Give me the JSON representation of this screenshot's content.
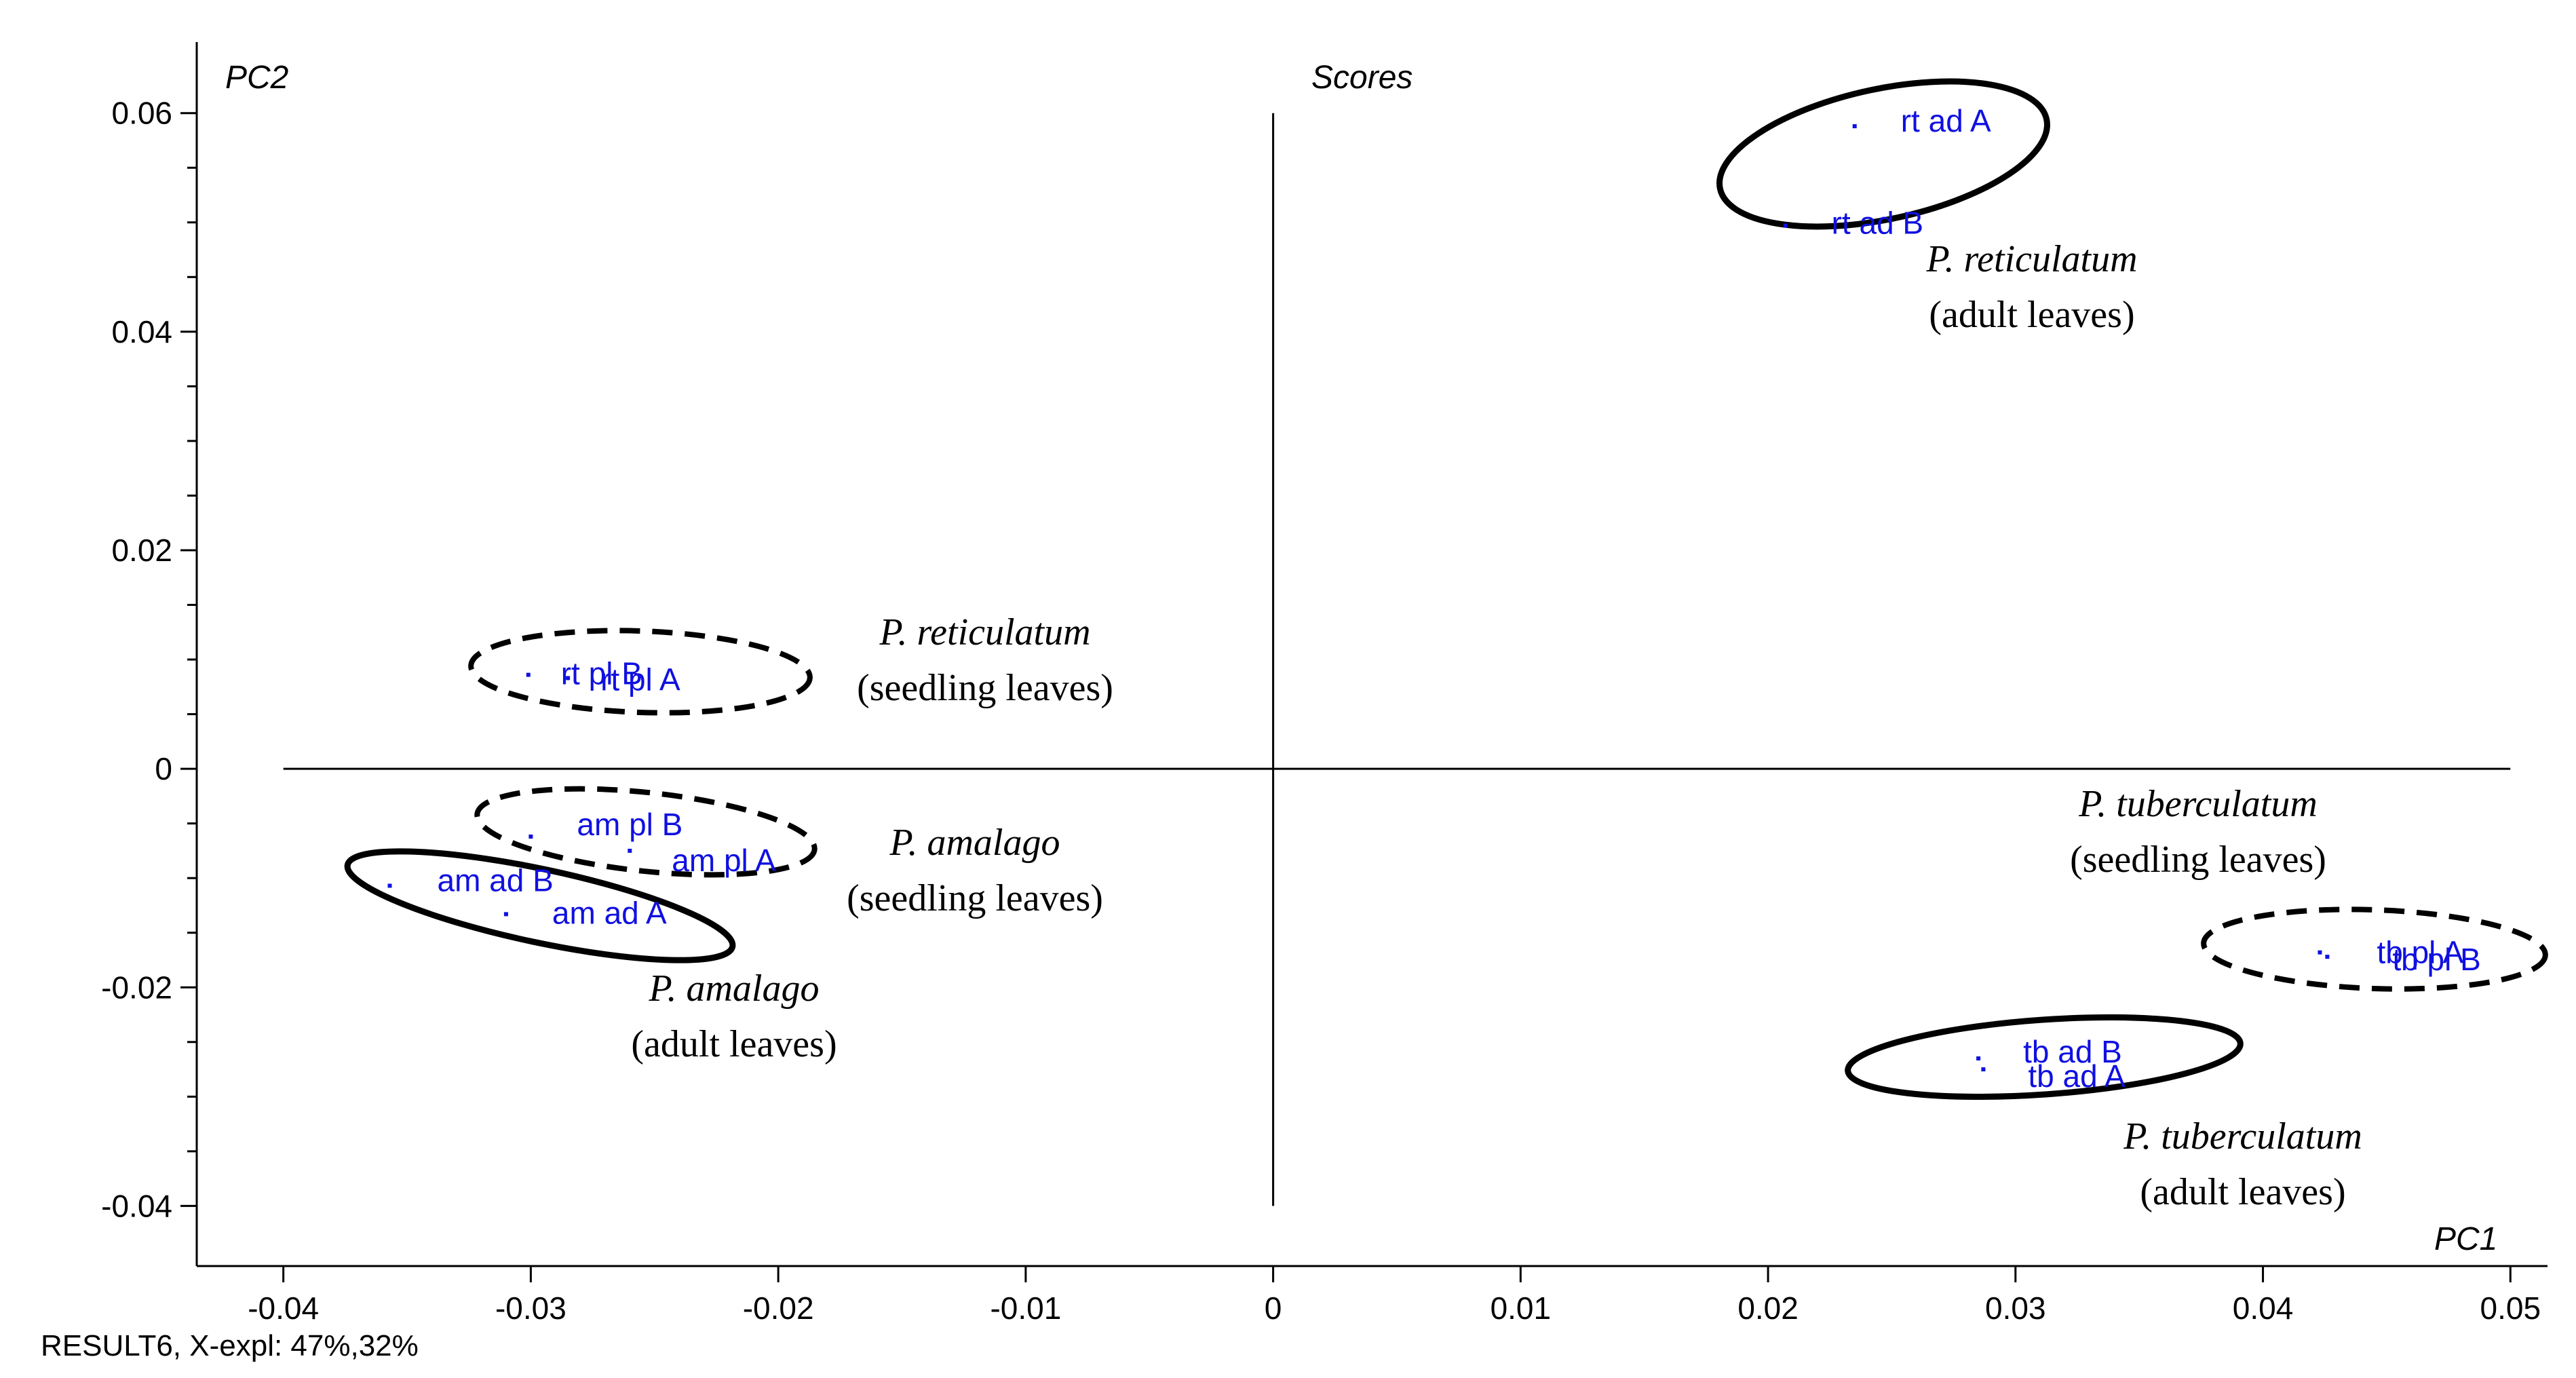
{
  "chart_data": {
    "type": "scatter",
    "title": "Scores",
    "xlabel": "PC1",
    "ylabel": "PC2",
    "xlim": [
      -0.0435,
      0.0515
    ],
    "ylim": [
      -0.0455,
      0.0665
    ],
    "x_ticks": [
      -0.04,
      -0.03,
      -0.02,
      -0.01,
      0,
      0.01,
      0.02,
      0.03,
      0.04,
      0.05
    ],
    "x_tick_labels": [
      "-0.04",
      "-0.03",
      "-0.02",
      "-0.01",
      "0",
      "0.01",
      "0.02",
      "0.03",
      "0.04",
      "0.05"
    ],
    "y_ticks": [
      -0.04,
      -0.02,
      0,
      0.02,
      0.04,
      0.06
    ],
    "y_tick_labels": [
      "-0.04",
      "-0.02",
      "0",
      "0.02",
      "0.04",
      "0.06"
    ],
    "y_minor_step": 0.005,
    "zero_lines": {
      "x_range": [
        -0.04,
        0.05
      ],
      "y_range": [
        -0.04,
        0.06
      ]
    },
    "points": [
      {
        "label": "rt ad A",
        "x": 0.0235,
        "y": 0.0588
      },
      {
        "label": "rt ad B",
        "x": 0.0207,
        "y": 0.0497
      },
      {
        "label": "rt pl B",
        "x": -0.0301,
        "y": 0.0086
      },
      {
        "label": "rt pl A",
        "x": -0.0285,
        "y": 0.0083
      },
      {
        "label": "am pl B",
        "x": -0.03,
        "y": -0.0062
      },
      {
        "label": "am pl A",
        "x": -0.026,
        "y": -0.0075
      },
      {
        "label": "am ad B",
        "x": -0.0357,
        "y": -0.0107
      },
      {
        "label": "am ad A",
        "x": -0.031,
        "y": -0.0133
      },
      {
        "label": "tb pl A",
        "x": 0.0423,
        "y": -0.0168
      },
      {
        "label": "tb pl B",
        "x": 0.0426,
        "y": -0.0172
      },
      {
        "label": "tb ad B",
        "x": 0.0285,
        "y": -0.0265
      },
      {
        "label": "tb ad A",
        "x": 0.0287,
        "y": -0.0275
      }
    ],
    "groups": [
      {
        "species": "P. reticulatum",
        "stage": "(adult leaves)",
        "outline": "solid"
      },
      {
        "species": "P. reticulatum",
        "stage": "(seedling leaves)",
        "outline": "dashed"
      },
      {
        "species": "P. amalago",
        "stage": "(seedling leaves)",
        "outline": "dashed"
      },
      {
        "species": "P. amalago",
        "stage": "(adult leaves)",
        "outline": "solid"
      },
      {
        "species": "P. tuberculatum",
        "stage": "(seedling leaves)",
        "outline": "dashed"
      },
      {
        "species": "P. tuberculatum",
        "stage": "(adult leaves)",
        "outline": "solid"
      }
    ],
    "footer": "RESULT6, X-expl: 47%,32%",
    "colors": {
      "points": "#1010e0",
      "axes": "#000000"
    }
  }
}
